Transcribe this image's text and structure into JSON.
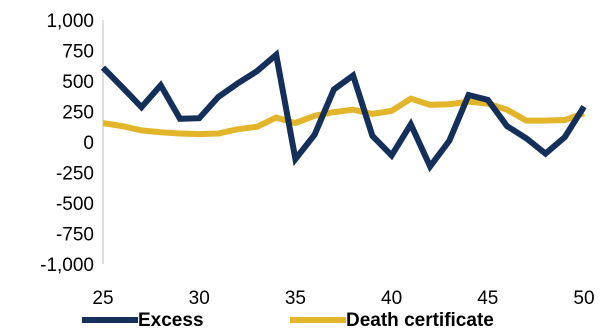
{
  "chart_data": {
    "type": "line",
    "title": "",
    "xlabel": "",
    "ylabel": "",
    "x": [
      25,
      26,
      27,
      28,
      29,
      30,
      31,
      32,
      33,
      34,
      35,
      36,
      37,
      38,
      39,
      40,
      41,
      42,
      43,
      44,
      45,
      46,
      47,
      48,
      49,
      50
    ],
    "xlim": [
      25,
      50
    ],
    "ylim": [
      -1000,
      1000
    ],
    "xticks": [
      25,
      30,
      35,
      40,
      45,
      50
    ],
    "xtick_labels": [
      "25",
      "30",
      "35",
      "40",
      "45",
      "50"
    ],
    "yticks": [
      1000,
      750,
      500,
      250,
      0,
      -250,
      -500,
      -750,
      -1000
    ],
    "ytick_labels": [
      "1,000",
      "750",
      "500",
      "250",
      "0",
      "-250",
      "-500",
      "-750",
      "-1,000"
    ],
    "grid": false,
    "legend_position": "bottom",
    "series": [
      {
        "name": "Excess",
        "color": "#14305a",
        "values": [
          610,
          450,
          285,
          465,
          190,
          195,
          370,
          480,
          580,
          715,
          -140,
          60,
          430,
          545,
          50,
          -110,
          145,
          -200,
          10,
          385,
          345,
          130,
          30,
          -95,
          40,
          290
        ]
      },
      {
        "name": "Death certificate",
        "color": "#e3b52a",
        "values": [
          155,
          130,
          95,
          80,
          70,
          65,
          70,
          105,
          125,
          200,
          155,
          215,
          245,
          265,
          230,
          255,
          355,
          305,
          310,
          330,
          315,
          265,
          175,
          175,
          180,
          235
        ]
      }
    ]
  }
}
